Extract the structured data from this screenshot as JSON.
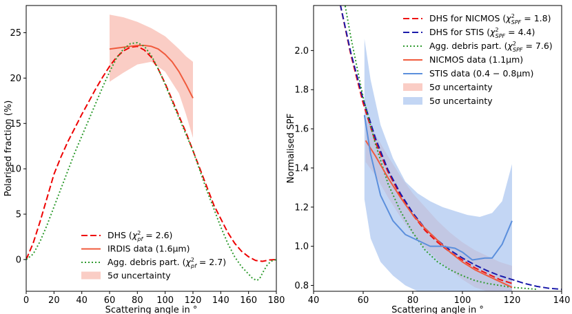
{
  "chart_data": [
    {
      "type": "line",
      "xlabel": "Scattering angle in °",
      "ylabel": "Polarised fraction (%)",
      "xlim": [
        0,
        180
      ],
      "ylim": [
        -3.5,
        28
      ],
      "xticks": [
        0,
        20,
        40,
        60,
        80,
        100,
        120,
        140,
        160,
        180
      ],
      "yticks": [
        0,
        5,
        10,
        15,
        20,
        25
      ],
      "legend_position": "lower-center",
      "series": [
        {
          "name": "DHS (χ²pf = 2.6)",
          "color": "#ee0000",
          "style": "dashed",
          "x": [
            0,
            5,
            10,
            15,
            20,
            25,
            30,
            35,
            40,
            45,
            50,
            55,
            60,
            65,
            70,
            75,
            80,
            85,
            90,
            95,
            100,
            105,
            110,
            115,
            120,
            125,
            130,
            135,
            140,
            145,
            150,
            155,
            160,
            165,
            170,
            175,
            180
          ],
          "y": [
            0,
            1.8,
            4.2,
            6.8,
            9.4,
            11.3,
            13.0,
            14.5,
            16.0,
            17.4,
            18.8,
            20.1,
            21.3,
            22.3,
            23.0,
            23.4,
            23.5,
            23.1,
            22.3,
            21.0,
            19.4,
            17.6,
            15.8,
            14.0,
            12.0,
            10.0,
            8.0,
            6.0,
            4.5,
            3.0,
            1.8,
            0.9,
            0.3,
            -0.1,
            -0.2,
            -0.05,
            0
          ]
        },
        {
          "name": "IRDIS data (1.6μm)",
          "color": "#f05a3c",
          "style": "solid",
          "x": [
            60,
            65,
            70,
            75,
            80,
            85,
            90,
            95,
            100,
            105,
            110,
            115,
            120
          ],
          "y": [
            23.2,
            23.3,
            23.4,
            23.5,
            23.6,
            23.6,
            23.5,
            23.2,
            22.6,
            21.8,
            20.7,
            19.3,
            17.8
          ]
        },
        {
          "name": "Agg. debris part. (χ²pf = 2.7)",
          "color": "#2e9a2e",
          "style": "dotted",
          "x": [
            0,
            5,
            10,
            15,
            20,
            25,
            30,
            35,
            40,
            45,
            50,
            55,
            60,
            65,
            70,
            75,
            80,
            85,
            90,
            95,
            100,
            105,
            110,
            115,
            120,
            125,
            130,
            135,
            140,
            145,
            150,
            155,
            160,
            163,
            166,
            168,
            170,
            173,
            176,
            180
          ],
          "y": [
            0,
            0.6,
            2.0,
            3.8,
            5.8,
            7.8,
            9.8,
            11.8,
            13.6,
            15.4,
            17.2,
            19.0,
            20.7,
            22.2,
            23.2,
            23.8,
            23.9,
            23.5,
            22.5,
            21.0,
            19.3,
            17.4,
            15.6,
            13.8,
            12.0,
            9.8,
            7.6,
            5.6,
            3.6,
            1.8,
            0.3,
            -0.8,
            -1.6,
            -2.1,
            -2.3,
            -2.1,
            -1.5,
            -0.7,
            -0.2,
            0
          ]
        }
      ],
      "bands": [
        {
          "name": "5σ uncertainty",
          "color": "#f8b8ac",
          "x": [
            60,
            70,
            80,
            90,
            100,
            110,
            115,
            120
          ],
          "upper": [
            27.0,
            26.7,
            26.2,
            25.5,
            24.6,
            23.2,
            22.4,
            21.8
          ],
          "lower": [
            19.6,
            20.6,
            21.5,
            21.8,
            20.7,
            18.3,
            16.0,
            13.4
          ]
        }
      ]
    },
    {
      "type": "line",
      "xlabel": "Scattering angle in °",
      "ylabel": "Normalised SPF",
      "xlim": [
        40,
        140
      ],
      "ylim": [
        0.77,
        2.23
      ],
      "xticks": [
        40,
        60,
        80,
        100,
        120,
        140
      ],
      "yticks": [
        0.8,
        1.0,
        1.2,
        1.4,
        1.6,
        1.8,
        2.0
      ],
      "legend_position": "upper-right",
      "series": [
        {
          "name": "DHS for NICMOS (χ²SPF = 1.8)",
          "color": "#ee1111",
          "style": "dashed",
          "x": [
            50,
            55,
            60,
            65,
            70,
            75,
            80,
            85,
            90,
            95,
            100,
            105,
            110,
            115,
            120
          ],
          "y": [
            2.28,
            1.98,
            1.73,
            1.53,
            1.38,
            1.26,
            1.16,
            1.08,
            1.02,
            0.97,
            0.93,
            0.89,
            0.86,
            0.83,
            0.81
          ]
        },
        {
          "name": "DHS for STIS (χ²SPF = 4.4)",
          "color": "#1a1aaa",
          "style": "dashed",
          "x": [
            50,
            55,
            60,
            65,
            70,
            75,
            80,
            85,
            90,
            95,
            100,
            105,
            110,
            115,
            120,
            125,
            130,
            135,
            140
          ],
          "y": [
            2.28,
            1.99,
            1.75,
            1.55,
            1.39,
            1.27,
            1.17,
            1.09,
            1.03,
            0.98,
            0.94,
            0.905,
            0.875,
            0.85,
            0.83,
            0.81,
            0.795,
            0.785,
            0.78
          ]
        },
        {
          "name": "Agg. debris part. (χ²SPF = 7.6)",
          "color": "#2e9a2e",
          "style": "dotted",
          "x": [
            52,
            55,
            60,
            65,
            70,
            75,
            80,
            85,
            90,
            95,
            100,
            105,
            110,
            115,
            120,
            125,
            130
          ],
          "y": [
            2.28,
            2.07,
            1.76,
            1.52,
            1.32,
            1.18,
            1.07,
            0.98,
            0.92,
            0.88,
            0.85,
            0.825,
            0.81,
            0.8,
            0.79,
            0.785,
            0.78
          ]
        },
        {
          "name": "NICMOS data (1.1μm)",
          "color": "#f05a3c",
          "style": "solid",
          "x": [
            61,
            65,
            70,
            75,
            80,
            85,
            90,
            95,
            100,
            105,
            110,
            115,
            120
          ],
          "y": [
            1.54,
            1.46,
            1.35,
            1.25,
            1.16,
            1.09,
            1.03,
            0.97,
            0.92,
            0.88,
            0.85,
            0.82,
            0.79
          ]
        },
        {
          "name": "STIS data (0.4 − 0.8μm)",
          "color": "#5b8fdc",
          "style": "solid",
          "x": [
            60.5,
            63,
            67,
            72,
            77,
            82,
            87,
            92,
            97,
            100,
            104,
            109,
            112,
            116,
            120
          ],
          "y": [
            1.67,
            1.47,
            1.26,
            1.13,
            1.06,
            1.03,
            1.0,
            1.0,
            0.99,
            0.97,
            0.93,
            0.94,
            0.94,
            1.01,
            1.13
          ]
        }
      ],
      "bands": [
        {
          "name": "5σ uncertainty",
          "color": "#f8b8ac",
          "x": [
            61,
            65,
            70,
            75,
            80,
            85,
            90,
            95,
            100,
            105,
            110,
            115,
            120
          ],
          "upper": [
            1.65,
            1.57,
            1.46,
            1.36,
            1.27,
            1.2,
            1.13,
            1.07,
            1.02,
            0.98,
            0.95,
            0.92,
            0.9
          ],
          "lower": [
            1.43,
            1.36,
            1.25,
            1.15,
            1.06,
            0.99,
            0.93,
            0.88,
            0.83,
            0.79,
            0.77,
            0.77,
            0.77
          ]
        },
        {
          "name": "5σ uncertainty",
          "color": "#a9c4ef",
          "x": [
            60.5,
            63,
            67,
            72,
            77,
            82,
            87,
            92,
            97,
            102,
            107,
            112,
            116,
            120
          ],
          "upper": [
            2.06,
            1.85,
            1.62,
            1.45,
            1.33,
            1.27,
            1.23,
            1.2,
            1.18,
            1.16,
            1.15,
            1.17,
            1.23,
            1.42
          ],
          "lower": [
            1.24,
            1.04,
            0.92,
            0.85,
            0.8,
            0.77,
            0.77,
            0.77,
            0.77,
            0.77,
            0.77,
            0.77,
            0.77,
            0.77
          ]
        }
      ]
    }
  ]
}
